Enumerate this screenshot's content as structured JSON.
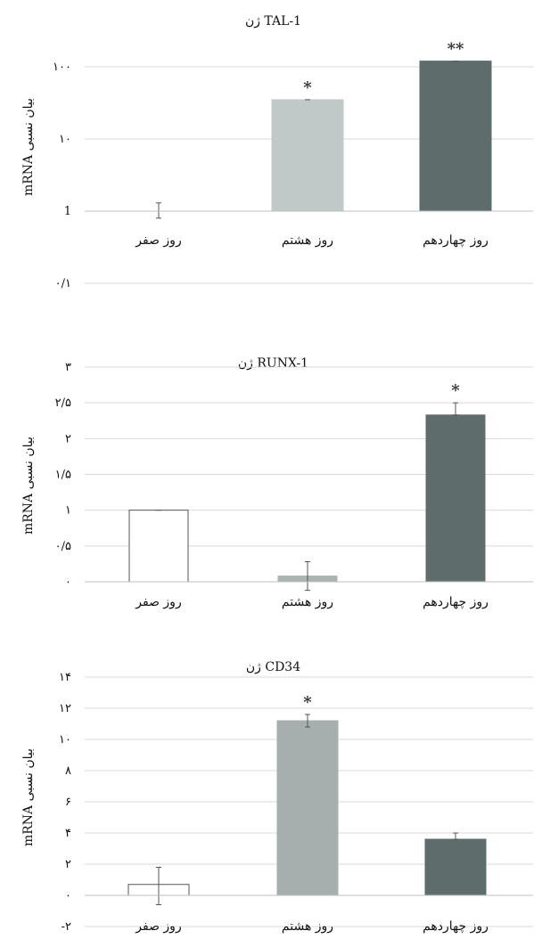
{
  "chart_data": [
    {
      "type": "bar",
      "title": "ژن TAL-1",
      "ylabel": "mRNA بیان نسبی",
      "yscale": "log",
      "ylim": [
        0.1,
        100
      ],
      "yticks": [
        {
          "v": 0.1,
          "label": "۰/۱"
        },
        {
          "v": 1,
          "label": "1"
        },
        {
          "v": 10,
          "label": "۱۰"
        },
        {
          "v": 100,
          "label": "۱۰۰"
        }
      ],
      "grid": true,
      "categories": [
        "روز صفر",
        "روز هشتم",
        "روز  چهاردهم"
      ],
      "values": [
        1,
        35,
        120
      ],
      "err": [
        [
          0.8,
          1.3
        ],
        [
          35,
          35
        ],
        [
          120,
          120
        ]
      ],
      "colors": [
        "#ffffff",
        "#c0c9c8",
        "#5f6c6c"
      ],
      "annotations": [
        "",
        "*",
        "**"
      ]
    },
    {
      "type": "bar",
      "title": "ژن RUNX-1",
      "ylabel": "mRNA بیان نسبی",
      "yscale": "linear",
      "ylim": [
        0,
        3
      ],
      "yticks": [
        {
          "v": 0,
          "label": "۰"
        },
        {
          "v": 0.5,
          "label": "۰/۵"
        },
        {
          "v": 1,
          "label": "۱"
        },
        {
          "v": 1.5,
          "label": "۱/۵"
        },
        {
          "v": 2,
          "label": "۲"
        },
        {
          "v": 2.5,
          "label": "۲/۵"
        },
        {
          "v": 3,
          "label": "۳"
        }
      ],
      "grid": true,
      "categories": [
        "روز صفر",
        "روز هشتم",
        "روز  چهاردهم"
      ],
      "values": [
        1,
        0.08,
        2.33
      ],
      "err": [
        [
          1,
          1
        ],
        [
          -0.12,
          0.28
        ],
        [
          2.33,
          2.5
        ]
      ],
      "colors": [
        "#ffffff",
        "#a9b3b2",
        "#5f6c6c"
      ],
      "annotations": [
        "",
        "",
        "*"
      ]
    },
    {
      "type": "bar",
      "title": "ژن CD34",
      "ylabel": "mRNA بیان نسبی",
      "yscale": "linear",
      "ylim": [
        -2,
        14
      ],
      "yticks": [
        {
          "v": -2,
          "label": "-۲"
        },
        {
          "v": 0,
          "label": "۰"
        },
        {
          "v": 2,
          "label": "۲"
        },
        {
          "v": 4,
          "label": "۴"
        },
        {
          "v": 6,
          "label": "۶"
        },
        {
          "v": 8,
          "label": "۸"
        },
        {
          "v": 10,
          "label": "۱۰"
        },
        {
          "v": 12,
          "label": "۱۲"
        },
        {
          "v": 14,
          "label": "۱۴"
        }
      ],
      "grid": true,
      "categories": [
        "روز صفر",
        "روز هشتم",
        "روز  چهاردهم"
      ],
      "values": [
        0.7,
        11.2,
        3.6
      ],
      "err": [
        [
          -0.6,
          1.8
        ],
        [
          10.8,
          11.6
        ],
        [
          3.6,
          4.0
        ]
      ],
      "colors": [
        "#ffffff",
        "#a6afae",
        "#5f6c6c"
      ],
      "annotations": [
        "",
        "*",
        ""
      ]
    }
  ]
}
